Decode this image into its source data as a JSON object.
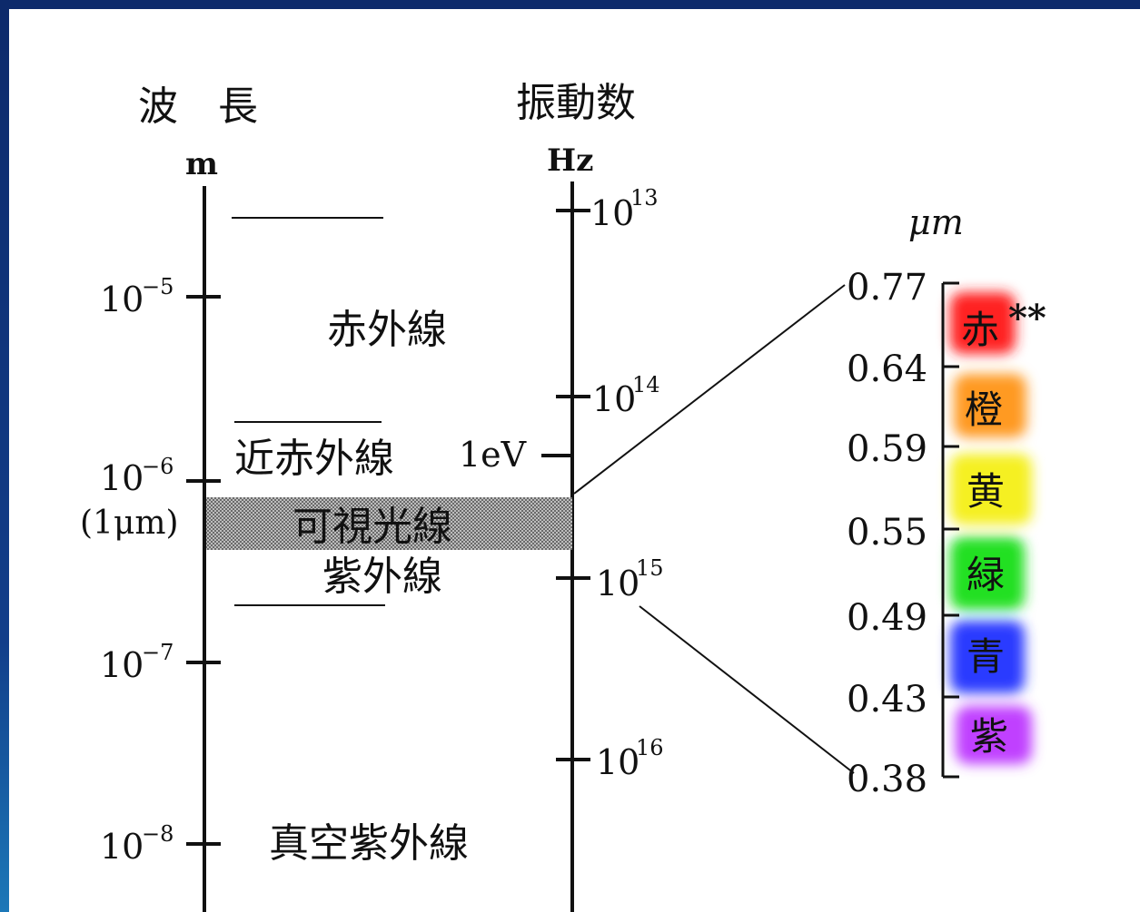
{
  "wavelength_axis": {
    "title": "波　長",
    "unit": "m",
    "ticks": [
      {
        "base": "10",
        "exp": "−5"
      },
      {
        "base": "10",
        "exp": "−6",
        "note": "(1μm)"
      },
      {
        "base": "10",
        "exp": "−7"
      },
      {
        "base": "10",
        "exp": "−8"
      }
    ]
  },
  "frequency_axis": {
    "title": "振動数",
    "unit": "Hz",
    "ticks": [
      {
        "base": "10",
        "exp": "13"
      },
      {
        "base": "10",
        "exp": "14"
      },
      {
        "base": "10",
        "exp": "15"
      },
      {
        "base": "10",
        "exp": "16"
      }
    ],
    "energy_marker": "1eV"
  },
  "regions": {
    "infrared": "赤外線",
    "near_infrared": "近赤外線",
    "visible": "可視光線",
    "ultraviolet": "紫外線",
    "vacuum_uv": "真空紫外線"
  },
  "visible_scale": {
    "unit": "μm",
    "ticks": [
      "0.77",
      "0.64",
      "0.59",
      "0.55",
      "0.49",
      "0.43",
      "0.38"
    ],
    "colors": [
      {
        "label": "赤",
        "hex": "#ff2020"
      },
      {
        "label": "橙",
        "hex": "#ff9a20"
      },
      {
        "label": "黄",
        "hex": "#f5f020"
      },
      {
        "label": "緑",
        "hex": "#20e020"
      },
      {
        "label": "青",
        "hex": "#2a3aff"
      },
      {
        "label": "紫",
        "hex": "#c040ff"
      }
    ],
    "note_mark": "**"
  }
}
